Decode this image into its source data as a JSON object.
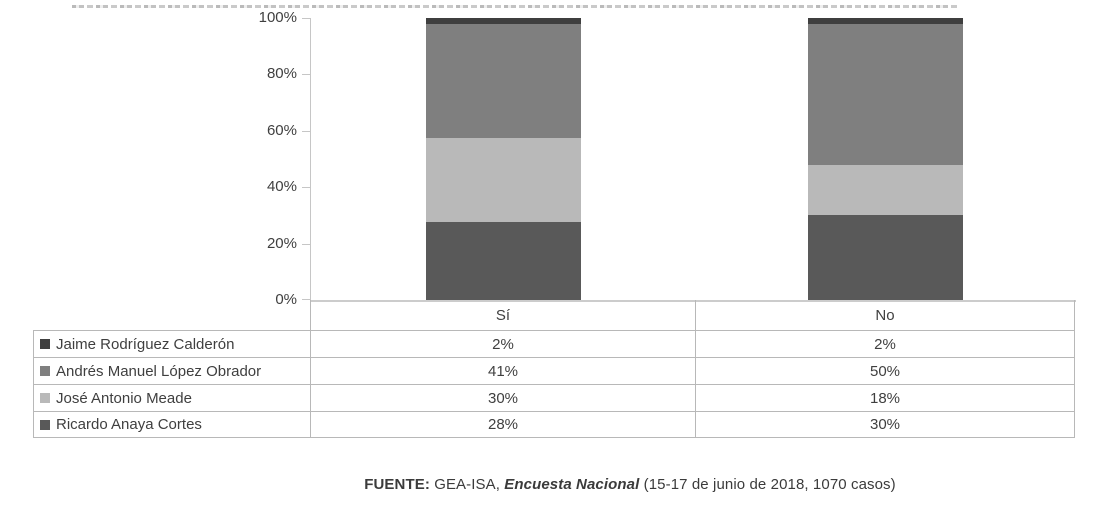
{
  "chart_data": {
    "type": "bar",
    "variant": "stacked-column",
    "title": "",
    "categories": [
      "Sí",
      "No"
    ],
    "series": [
      {
        "name": "Jaime Rodríguez Calderón",
        "color": "#3f3f3f",
        "values": [
          2,
          2
        ]
      },
      {
        "name": "Andrés Manuel López Obrador",
        "color": "#7f7f7f",
        "values": [
          41,
          50
        ]
      },
      {
        "name": "José Antonio Meade",
        "color": "#b9b9b9",
        "values": [
          30,
          18
        ]
      },
      {
        "name": "Ricardo Anaya Cortes",
        "color": "#595959",
        "values": [
          28,
          30
        ]
      }
    ],
    "stack_order": "top-to-bottom as listed",
    "y_axis": {
      "min": 0,
      "max": 100,
      "step": 20,
      "ticks": [
        "100%",
        "80%",
        "60%",
        "40%",
        "20%",
        "0%"
      ]
    },
    "gridlines": false,
    "legend_position": "data-table-below-chart"
  },
  "table": {
    "headers": {
      "col1": "Sí",
      "col2": "No"
    },
    "rows": [
      {
        "name": "Jaime Rodríguez Calderón",
        "si": "2%",
        "no": "2%"
      },
      {
        "name": "Andrés Manuel López Obrador",
        "si": "41%",
        "no": "50%"
      },
      {
        "name": "José Antonio Meade",
        "si": "30%",
        "no": "18%"
      },
      {
        "name": "Ricardo Anaya Cortes",
        "si": "28%",
        "no": "30%"
      }
    ]
  },
  "footer": {
    "source_label": "FUENTE:",
    "source_org": " GEA-ISA, ",
    "source_title": "Encuesta Nacional",
    "source_detail": " (15-17 de junio de 2018, 1070 casos)"
  },
  "colors": {
    "axis_line": "#c6c6c6",
    "table_border": "#b8b8b8",
    "text": "#3f3f3f",
    "background": "#ffffff"
  }
}
